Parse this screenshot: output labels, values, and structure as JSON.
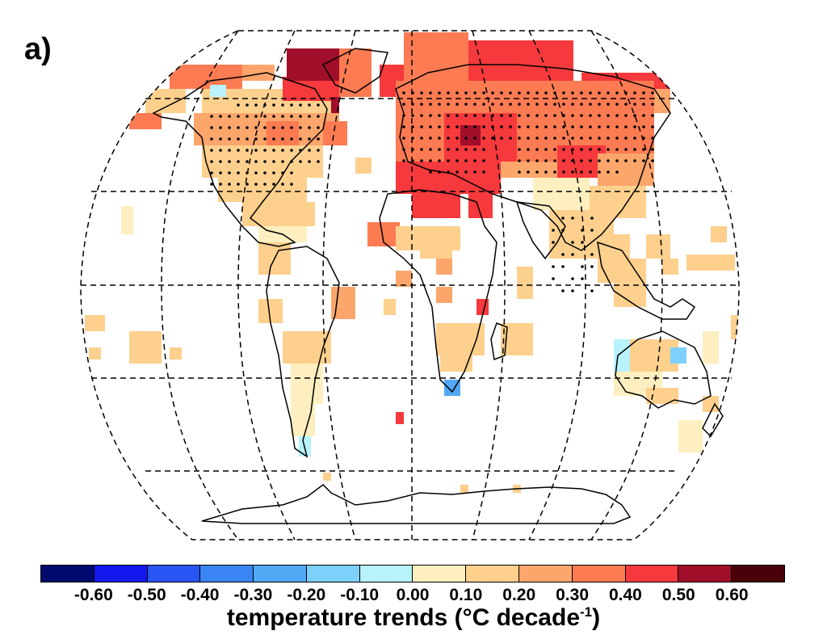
{
  "panel_label": "a)",
  "colorbar": {
    "label_main": "temperature trends (°C decade",
    "label_sup": "-1",
    "label_end": ")",
    "tick_labels": [
      "-0.60",
      "-0.50",
      "-0.40",
      "-0.30",
      "-0.20",
      "-0.10",
      "0.00",
      "0.10",
      "0.20",
      "0.30",
      "0.40",
      "0.50",
      "0.60"
    ],
    "colors": [
      "#000a6e",
      "#1419f0",
      "#2a55f5",
      "#3a85f3",
      "#52a8f5",
      "#7cd0fa",
      "#b8f2fa",
      "#fdefbf",
      "#fdd08e",
      "#fca66c",
      "#fc7b52",
      "#f5393c",
      "#a00e2a",
      "#4a0008"
    ]
  },
  "map": {
    "projection": "robinson",
    "graticule": "dashed 30° lines",
    "dot_meaning": "stippling marks significant trends"
  }
}
